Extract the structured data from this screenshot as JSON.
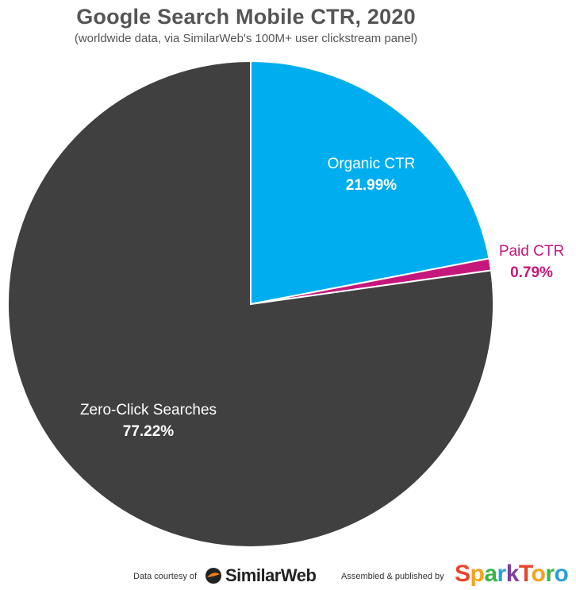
{
  "chart_data": {
    "type": "pie",
    "title": "Google Search Mobile CTR, 2020",
    "subtitle": "(worldwide data, via SimilarWeb's 100M+ user clickstream panel)",
    "slices": [
      {
        "label": "Organic CTR",
        "value": 21.99,
        "display": "21.99%",
        "color": "#00aeef",
        "label_color": "#ffffff"
      },
      {
        "label": "Paid CTR",
        "value": 0.79,
        "display": "0.79%",
        "color": "#c5177b",
        "label_color": "#c5177b"
      },
      {
        "label": "Zero-Click Searches",
        "value": 77.22,
        "display": "77.22%",
        "color": "#404040",
        "label_color": "#ffffff"
      }
    ],
    "start": "12 o'clock, clockwise"
  },
  "footer": {
    "data_courtesy": "Data courtesy of",
    "similarweb_logo": "SimilarWeb",
    "assembled": "Assembled & published by",
    "sparktoro_logo": "SparkToro"
  },
  "colors": {
    "title": "#555555",
    "organic": "#00aeef",
    "paid": "#c5177b",
    "zero_click": "#404040",
    "similarweb_accent": "#f4801f",
    "sparktoro": [
      "#e8452c",
      "#f7a21b",
      "#3ab54a",
      "#2a9fd8",
      "#7b3fa0"
    ]
  }
}
